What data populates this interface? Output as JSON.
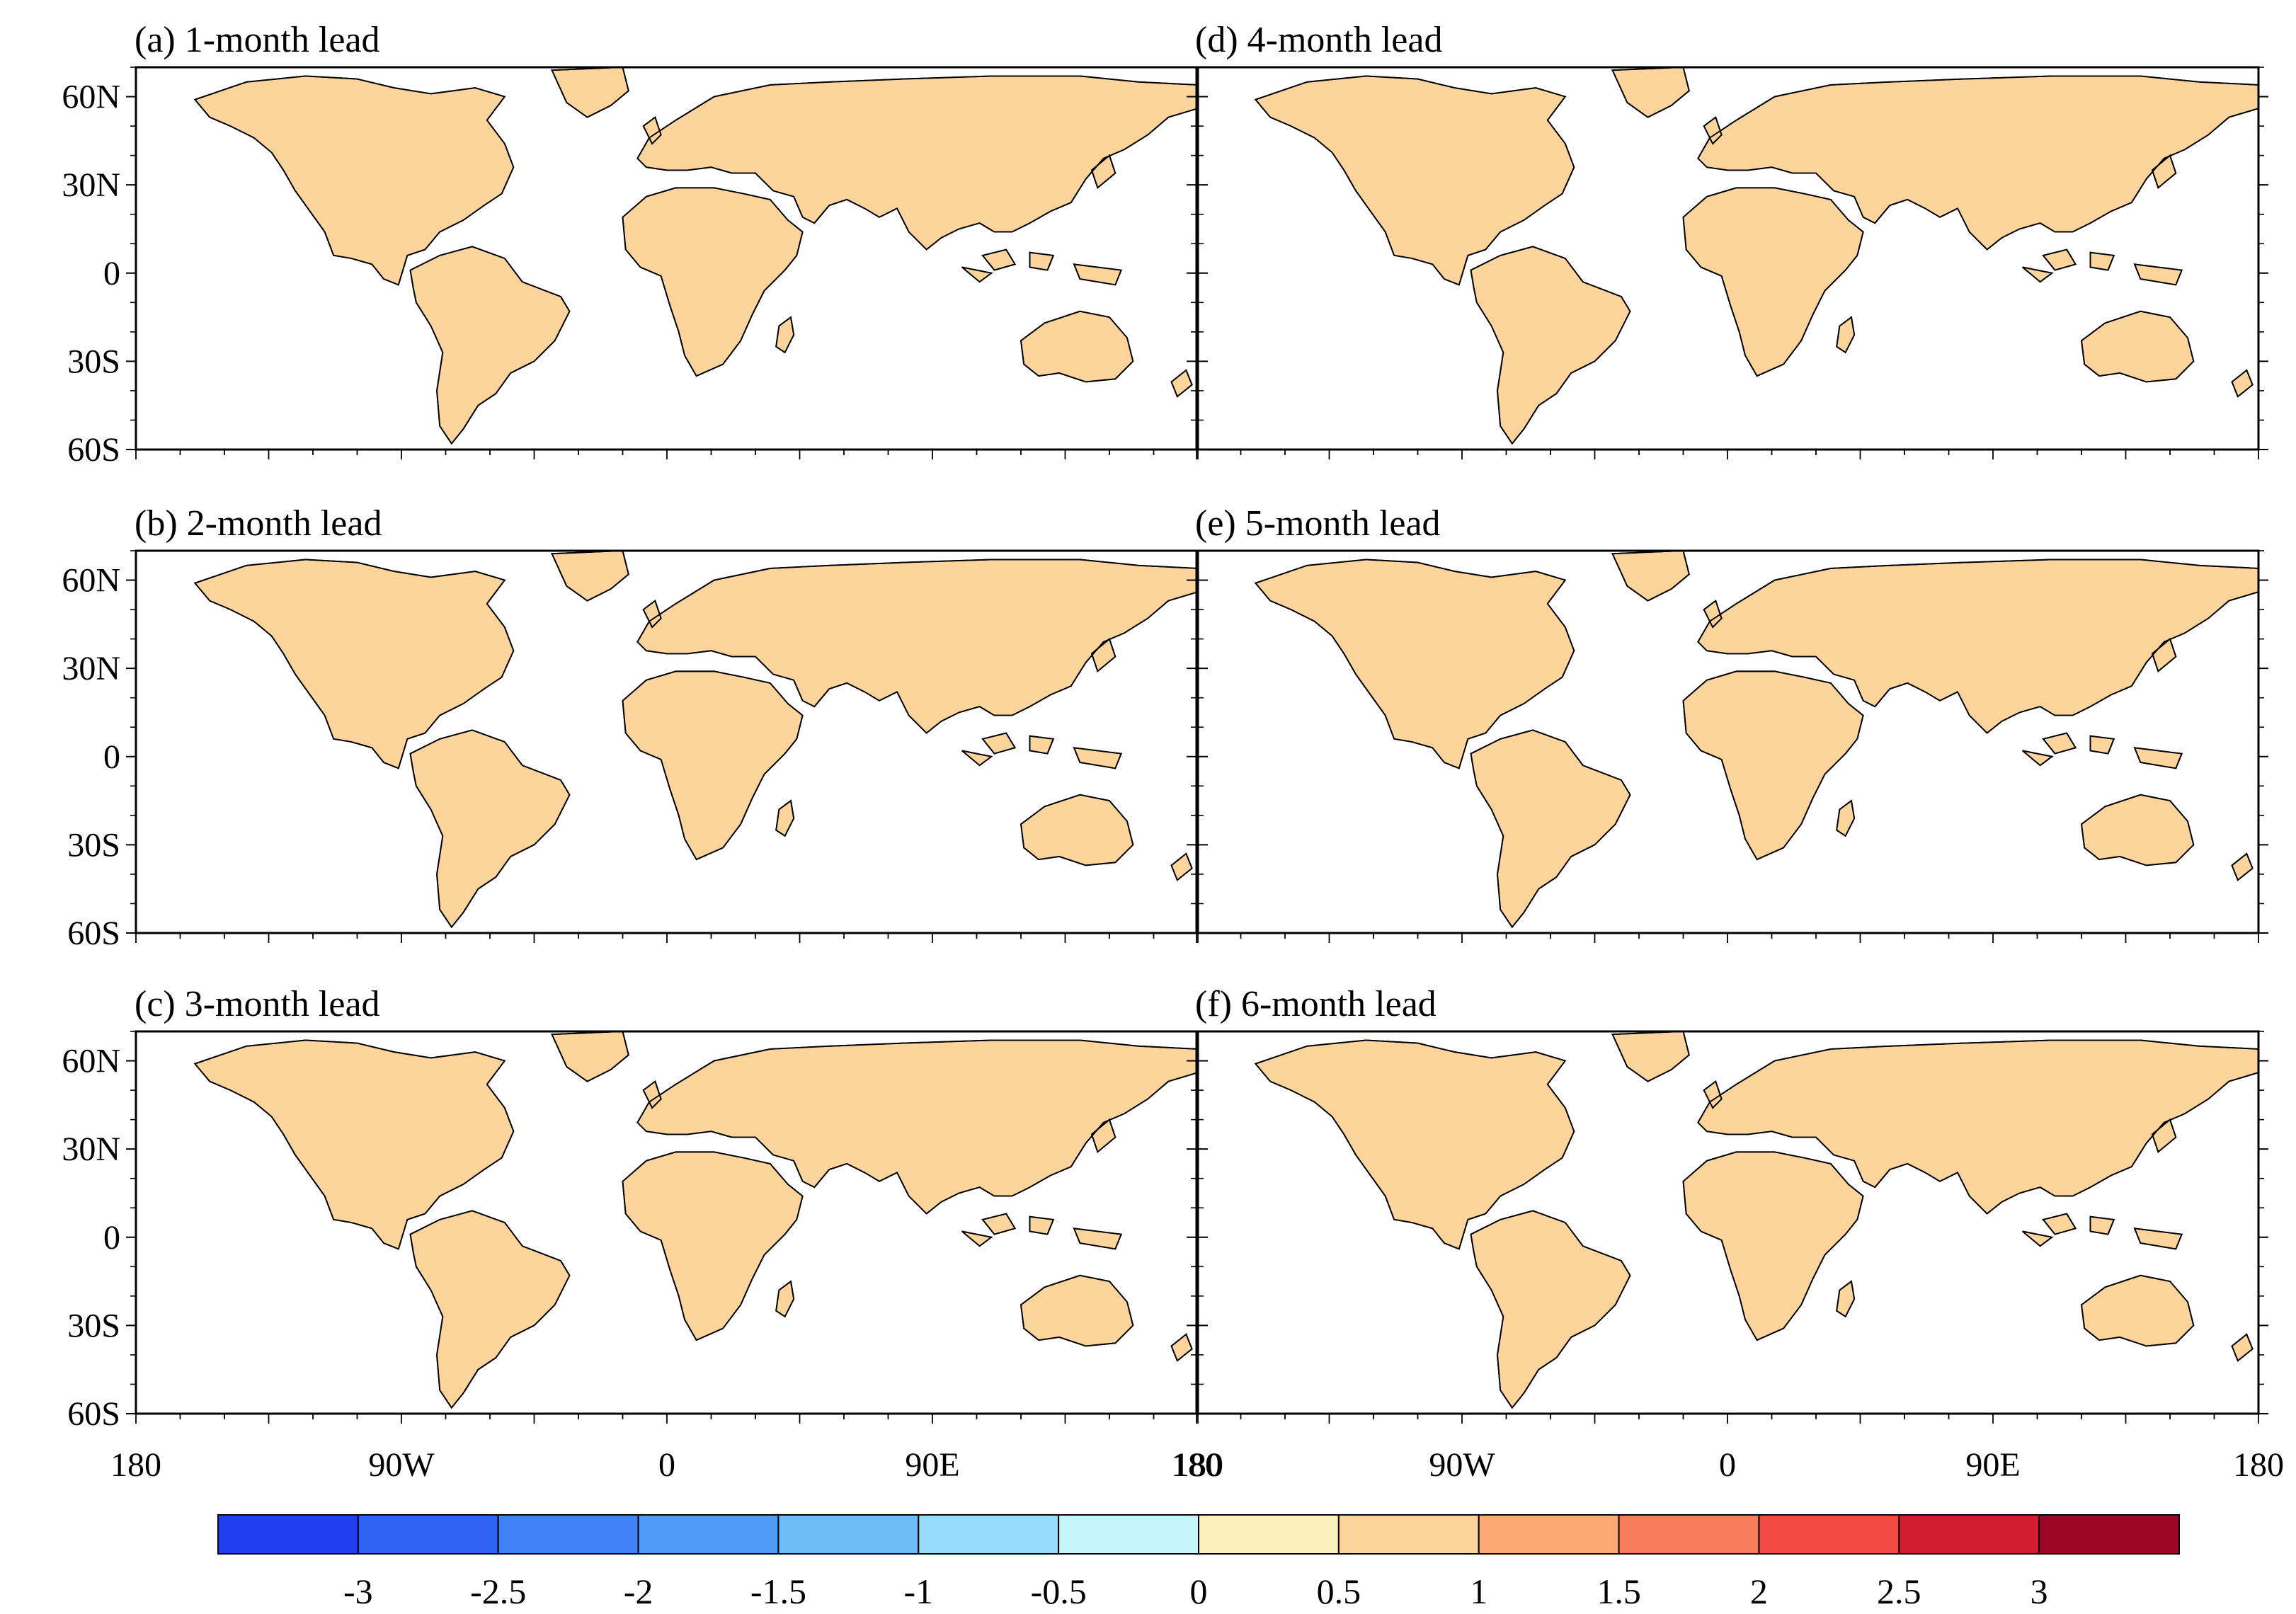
{
  "panels": [
    {
      "title": "(a) 1-month lead"
    },
    {
      "title": "(d) 4-month lead"
    },
    {
      "title": "(b) 2-month lead"
    },
    {
      "title": "(e) 5-month lead"
    },
    {
      "title": "(c) 3-month lead"
    },
    {
      "title": "(f) 6-month lead"
    }
  ],
  "map": {
    "region": "global land",
    "lon_range": [
      -180,
      180
    ],
    "lat_range": [
      -60,
      70
    ],
    "lat_ticks": [
      {
        "value": 60,
        "label": "60N"
      },
      {
        "value": 30,
        "label": "30N"
      },
      {
        "value": 0,
        "label": "0"
      },
      {
        "value": -30,
        "label": "30S"
      },
      {
        "value": -60,
        "label": "60S"
      }
    ],
    "lon_ticks": [
      {
        "value": -180,
        "label": "180"
      },
      {
        "value": -90,
        "label": "90W"
      },
      {
        "value": 0,
        "label": "0"
      },
      {
        "value": 90,
        "label": "90E"
      },
      {
        "value": 180,
        "label": "180"
      }
    ]
  },
  "colorbar": {
    "labels": [
      "-3",
      "-2.5",
      "-2",
      "-1.5",
      "-1",
      "-0.5",
      "0",
      "0.5",
      "1",
      "1.5",
      "2",
      "2.5",
      "3"
    ],
    "colors": [
      "#1f3ff0",
      "#2f63f5",
      "#3f82f7",
      "#4e9cf7",
      "#6ebcf8",
      "#98dcfb",
      "#c4f4fc",
      "#fdf0bf",
      "#fdd49b",
      "#fbaa76",
      "#f97d5c",
      "#f24b43",
      "#d41c31",
      "#9d0626"
    ]
  }
}
